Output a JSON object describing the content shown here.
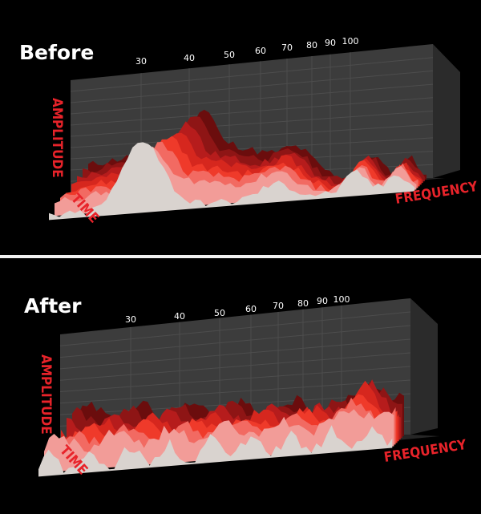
{
  "chart_data": [
    {
      "type": "area",
      "title": "Before",
      "xlabel": "FREQUENCY",
      "ylabel": "AMPLITUDE",
      "zlabel": "TIME",
      "x_ticks": [
        "30",
        "40",
        "50",
        "60",
        "70",
        "80",
        "90",
        "100"
      ],
      "colors": [
        "#6b0d0d",
        "#8e1515",
        "#b61c1c",
        "#d6271e",
        "#ef3a2a",
        "#f26a62",
        "#f29c98",
        "#d9d3cf"
      ]
    },
    {
      "type": "area",
      "title": "After",
      "xlabel": "FREQUENCY",
      "ylabel": "AMPLITUDE",
      "zlabel": "TIME",
      "x_ticks": [
        "30",
        "40",
        "50",
        "60",
        "70",
        "80",
        "90",
        "100"
      ],
      "colors": [
        "#6b0d0d",
        "#8e1515",
        "#b61c1c",
        "#d6271e",
        "#ef3a2a",
        "#f26a62",
        "#f29c98",
        "#d9d3cf"
      ]
    }
  ]
}
